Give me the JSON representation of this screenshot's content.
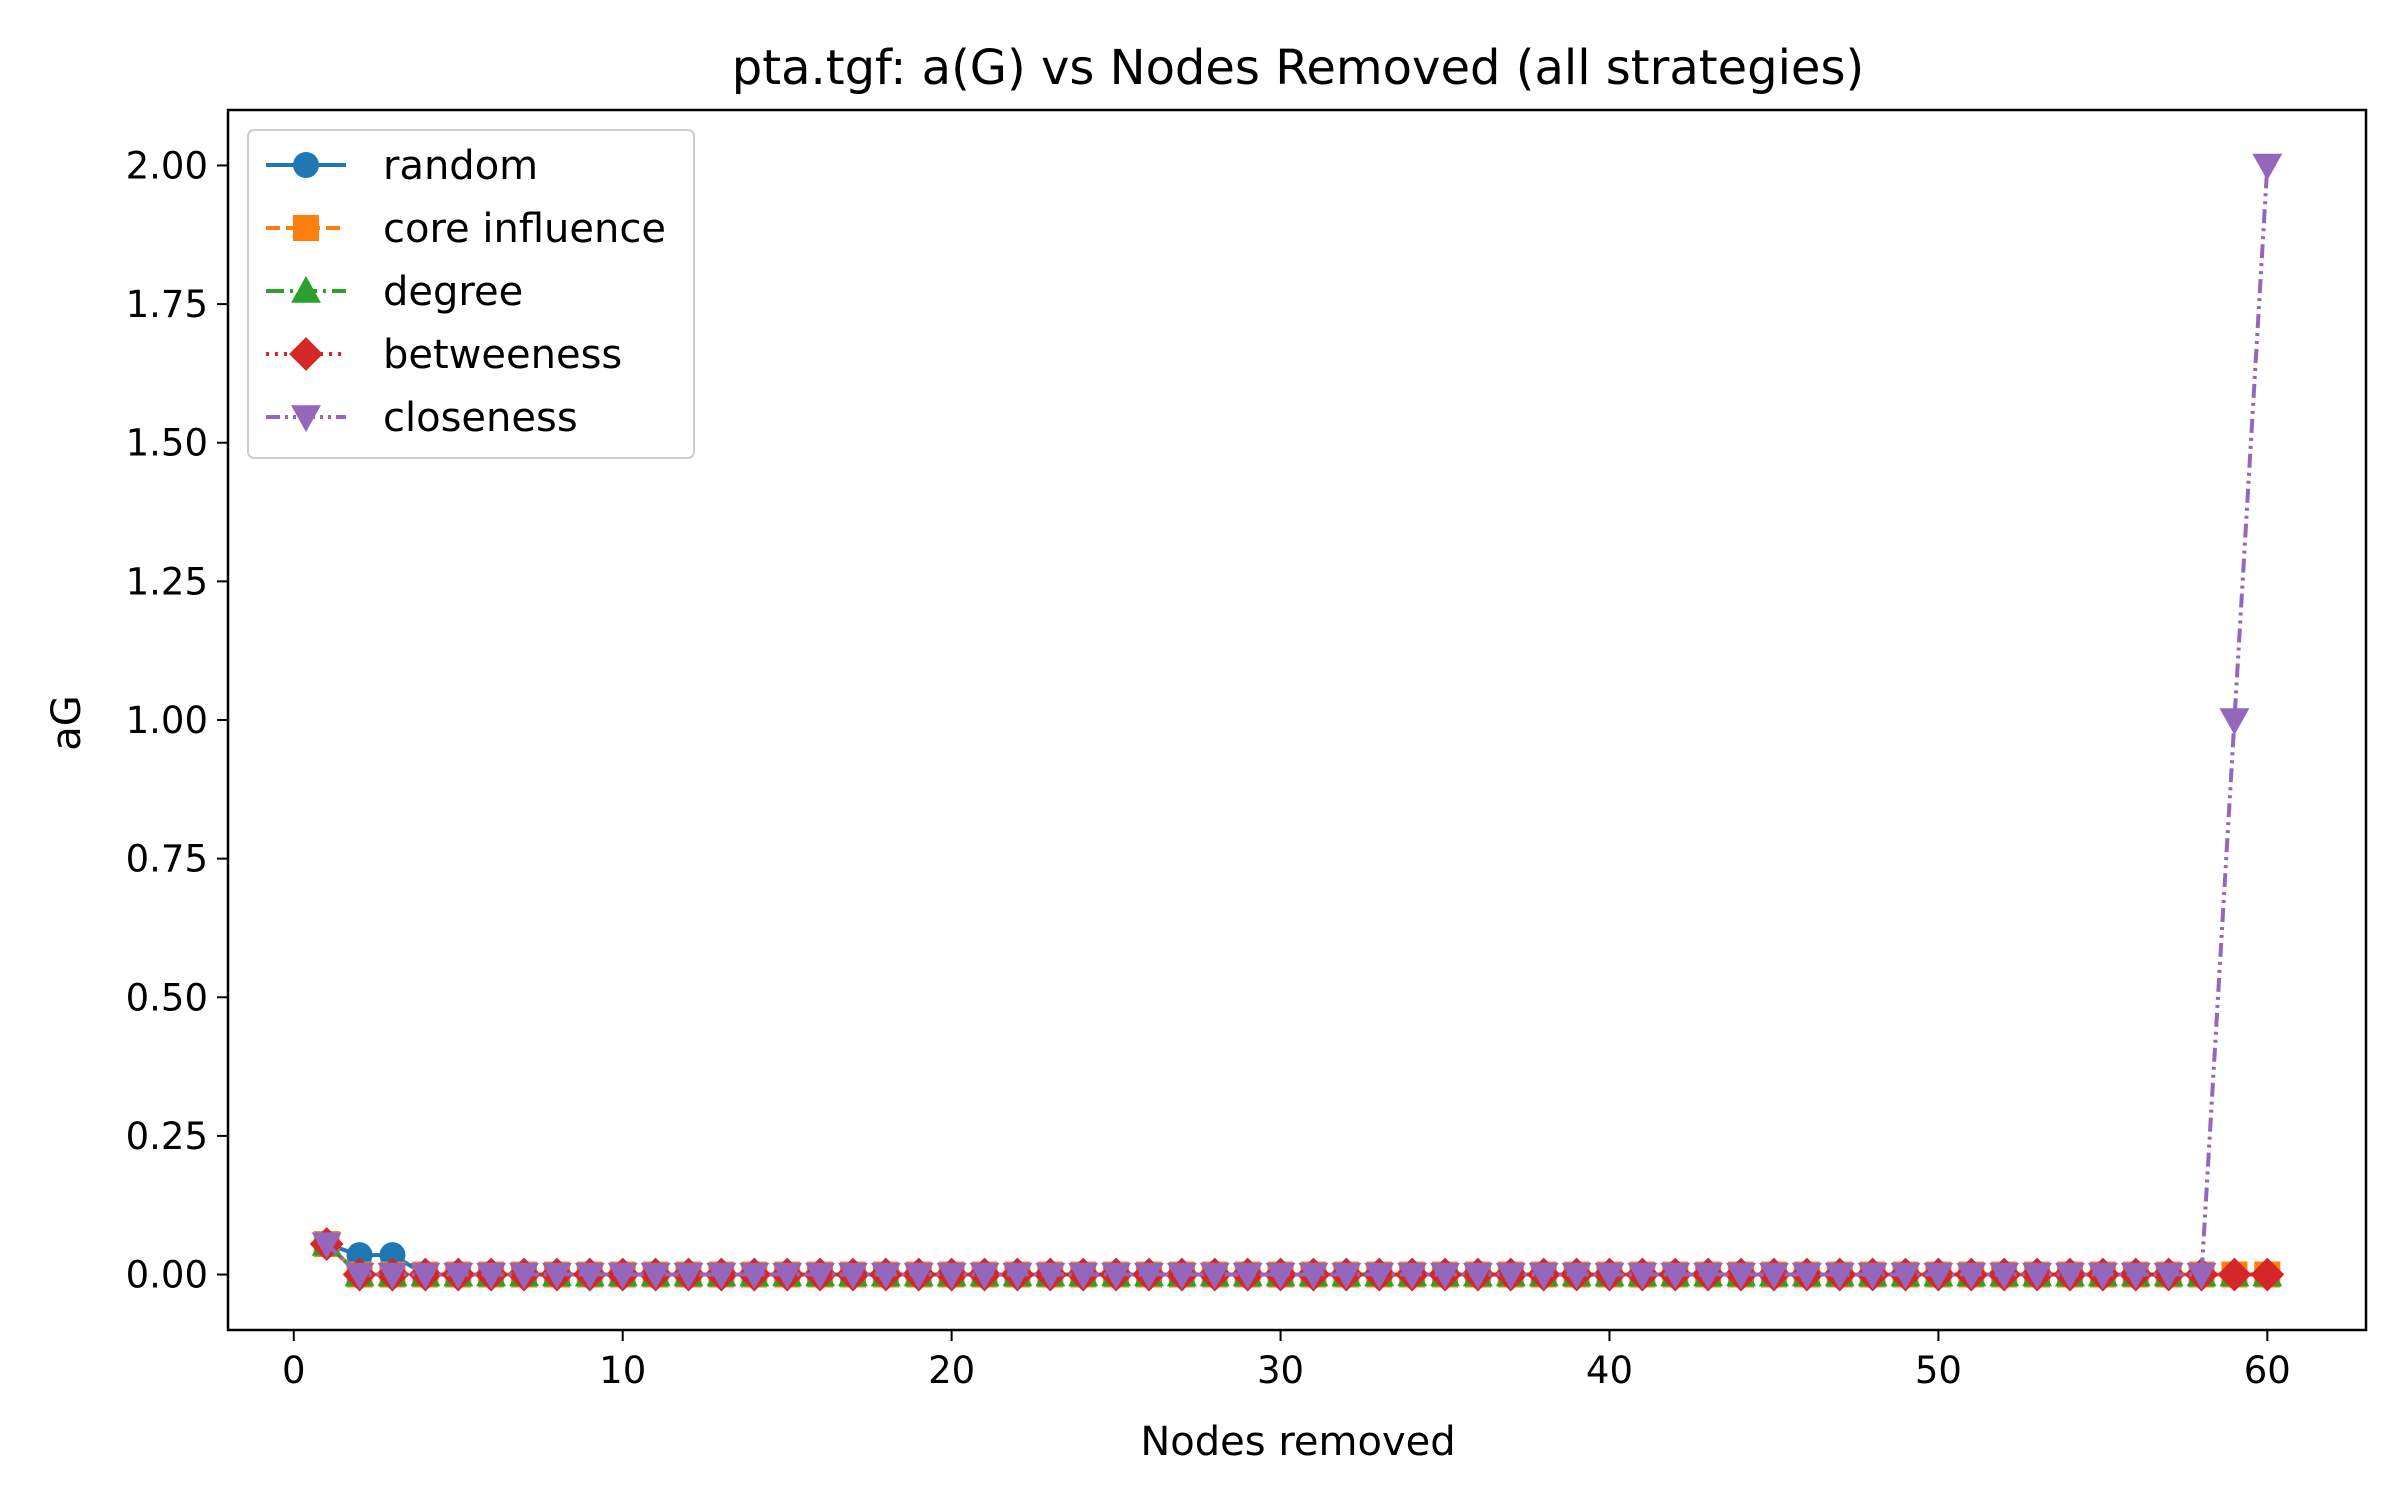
{
  "chart_data": {
    "type": "line",
    "title": "pta.tgf: a(G) vs Nodes Removed (all strategies)",
    "xlabel": "Nodes removed",
    "ylabel": "aG",
    "xlim": [
      -2,
      63
    ],
    "ylim": [
      -0.1,
      2.1
    ],
    "xticks": [
      0,
      10,
      20,
      30,
      40,
      50,
      60
    ],
    "yticks": [
      0.0,
      0.25,
      0.5,
      0.75,
      1.0,
      1.25,
      1.5,
      1.75,
      2.0
    ],
    "ytick_labels": [
      "0.00",
      "0.25",
      "0.50",
      "0.75",
      "1.00",
      "1.25",
      "1.50",
      "1.75",
      "2.00"
    ],
    "legend_position": "upper-left",
    "series": [
      {
        "name": "random",
        "color": "#1f77b4",
        "marker": "circle",
        "linestyle": "solid",
        "x": [
          1,
          2,
          3,
          4,
          5,
          6,
          7,
          8,
          9,
          10,
          11,
          12,
          13,
          14,
          15,
          16,
          17,
          18,
          19,
          20,
          21,
          22,
          23,
          24,
          25,
          26,
          27,
          28,
          29,
          30,
          31,
          32,
          33,
          34,
          35,
          36,
          37,
          38,
          39,
          40,
          41,
          42,
          43,
          44,
          45,
          46,
          47,
          48,
          49,
          50,
          51,
          52,
          53,
          54,
          55,
          56,
          57,
          58,
          59,
          60
        ],
        "y": [
          0.055,
          0.035,
          0.035,
          0,
          0,
          0,
          0,
          0,
          0,
          0,
          0,
          0,
          0,
          0,
          0,
          0,
          0,
          0,
          0,
          0,
          0,
          0,
          0,
          0,
          0,
          0,
          0,
          0,
          0,
          0,
          0,
          0,
          0,
          0,
          0,
          0,
          0,
          0,
          0,
          0,
          0,
          0,
          0,
          0,
          0,
          0,
          0,
          0,
          0,
          0,
          0,
          0,
          0,
          0,
          0,
          0,
          0,
          0,
          0,
          0
        ]
      },
      {
        "name": "core influence",
        "color": "#ff7f0e",
        "marker": "square",
        "linestyle": "dashed",
        "x": [
          1,
          2,
          3,
          4,
          5,
          6,
          7,
          8,
          9,
          10,
          11,
          12,
          13,
          14,
          15,
          16,
          17,
          18,
          19,
          20,
          21,
          22,
          23,
          24,
          25,
          26,
          27,
          28,
          29,
          30,
          31,
          32,
          33,
          34,
          35,
          36,
          37,
          38,
          39,
          40,
          41,
          42,
          43,
          44,
          45,
          46,
          47,
          48,
          49,
          50,
          51,
          52,
          53,
          54,
          55,
          56,
          57,
          58,
          59,
          60
        ],
        "y": [
          0.055,
          0,
          0,
          0,
          0,
          0,
          0,
          0,
          0,
          0,
          0,
          0,
          0,
          0,
          0,
          0,
          0,
          0,
          0,
          0,
          0,
          0,
          0,
          0,
          0,
          0,
          0,
          0,
          0,
          0,
          0,
          0,
          0,
          0,
          0,
          0,
          0,
          0,
          0,
          0,
          0,
          0,
          0,
          0,
          0,
          0,
          0,
          0,
          0,
          0,
          0,
          0,
          0,
          0,
          0,
          0,
          0,
          0,
          0,
          0
        ]
      },
      {
        "name": "degree",
        "color": "#2ca02c",
        "marker": "triangle-up",
        "linestyle": "dashdot",
        "x": [
          1,
          2,
          3,
          4,
          5,
          6,
          7,
          8,
          9,
          10,
          11,
          12,
          13,
          14,
          15,
          16,
          17,
          18,
          19,
          20,
          21,
          22,
          23,
          24,
          25,
          26,
          27,
          28,
          29,
          30,
          31,
          32,
          33,
          34,
          35,
          36,
          37,
          38,
          39,
          40,
          41,
          42,
          43,
          44,
          45,
          46,
          47,
          48,
          49,
          50,
          51,
          52,
          53,
          54,
          55,
          56,
          57,
          58,
          59,
          60
        ],
        "y": [
          0.055,
          0,
          0,
          0,
          0,
          0,
          0,
          0,
          0,
          0,
          0,
          0,
          0,
          0,
          0,
          0,
          0,
          0,
          0,
          0,
          0,
          0,
          0,
          0,
          0,
          0,
          0,
          0,
          0,
          0,
          0,
          0,
          0,
          0,
          0,
          0,
          0,
          0,
          0,
          0,
          0,
          0,
          0,
          0,
          0,
          0,
          0,
          0,
          0,
          0,
          0,
          0,
          0,
          0,
          0,
          0,
          0,
          0,
          0,
          0
        ]
      },
      {
        "name": "betweeness",
        "color": "#d62728",
        "marker": "diamond",
        "linestyle": "dotted",
        "x": [
          1,
          2,
          3,
          4,
          5,
          6,
          7,
          8,
          9,
          10,
          11,
          12,
          13,
          14,
          15,
          16,
          17,
          18,
          19,
          20,
          21,
          22,
          23,
          24,
          25,
          26,
          27,
          28,
          29,
          30,
          31,
          32,
          33,
          34,
          35,
          36,
          37,
          38,
          39,
          40,
          41,
          42,
          43,
          44,
          45,
          46,
          47,
          48,
          49,
          50,
          51,
          52,
          53,
          54,
          55,
          56,
          57,
          58,
          59,
          60
        ],
        "y": [
          0.055,
          0,
          0,
          0,
          0,
          0,
          0,
          0,
          0,
          0,
          0,
          0,
          0,
          0,
          0,
          0,
          0,
          0,
          0,
          0,
          0,
          0,
          0,
          0,
          0,
          0,
          0,
          0,
          0,
          0,
          0,
          0,
          0,
          0,
          0,
          0,
          0,
          0,
          0,
          0,
          0,
          0,
          0,
          0,
          0,
          0,
          0,
          0,
          0,
          0,
          0,
          0,
          0,
          0,
          0,
          0,
          0,
          0,
          0,
          0
        ]
      },
      {
        "name": "closeness",
        "color": "#9467bd",
        "marker": "triangle-down",
        "linestyle": "dashdotdot",
        "x": [
          1,
          2,
          3,
          4,
          5,
          6,
          7,
          8,
          9,
          10,
          11,
          12,
          13,
          14,
          15,
          16,
          17,
          18,
          19,
          20,
          21,
          22,
          23,
          24,
          25,
          26,
          27,
          28,
          29,
          30,
          31,
          32,
          33,
          34,
          35,
          36,
          37,
          38,
          39,
          40,
          41,
          42,
          43,
          44,
          45,
          46,
          47,
          48,
          49,
          50,
          51,
          52,
          53,
          54,
          55,
          56,
          57,
          58,
          59,
          60
        ],
        "y": [
          0.055,
          0,
          0,
          0,
          0,
          0,
          0,
          0,
          0,
          0,
          0,
          0,
          0,
          0,
          0,
          0,
          0,
          0,
          0,
          0,
          0,
          0,
          0,
          0,
          0,
          0,
          0,
          0,
          0,
          0,
          0,
          0,
          0,
          0,
          0,
          0,
          0,
          0,
          0,
          0,
          0,
          0,
          0,
          0,
          0,
          0,
          0,
          0,
          0,
          0,
          0,
          0,
          0,
          0,
          0,
          0,
          0,
          0,
          1.0,
          2.0
        ]
      }
    ]
  }
}
